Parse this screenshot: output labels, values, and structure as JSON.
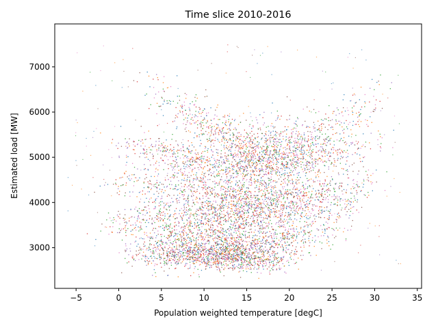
{
  "chart_data": {
    "type": "scatter",
    "title": "Time slice 2010-2016",
    "xlabel": "Population weighted temperature [degC]",
    "ylabel": "Estimated load [MW]",
    "xlim": [
      -7.5,
      35.5
    ],
    "ylim": [
      2100,
      7950
    ],
    "xticks": [
      -5,
      0,
      5,
      10,
      15,
      20,
      25,
      30,
      35
    ],
    "yticks": [
      3000,
      4000,
      5000,
      6000,
      7000
    ],
    "grid": false,
    "legend": "none",
    "colors": [
      "#1f77b4",
      "#ff7f0e",
      "#2ca02c",
      "#d62728",
      "#9467bd",
      "#8c564b",
      "#e377c2"
    ],
    "description_bands": [
      {
        "x_range": [
          2,
          32
        ],
        "y_at_points": [
          [
            2,
            6600
          ],
          [
            8,
            5950
          ],
          [
            15,
            5250
          ],
          [
            20,
            5250
          ],
          [
            25,
            5600
          ],
          [
            30,
            6300
          ],
          [
            32,
            6750
          ]
        ],
        "spread": 280
      },
      {
        "x_range": [
          -2,
          32
        ],
        "y_at_points": [
          [
            -2,
            5500
          ],
          [
            5,
            5100
          ],
          [
            12,
            4800
          ],
          [
            20,
            4850
          ],
          [
            27,
            5100
          ],
          [
            32,
            5400
          ]
        ],
        "spread": 200
      },
      {
        "x_range": [
          -3,
          32
        ],
        "y_at_points": [
          [
            -3,
            4400
          ],
          [
            5,
            4400
          ],
          [
            15,
            4100
          ],
          [
            22,
            4200
          ],
          [
            28,
            4350
          ],
          [
            32,
            4500
          ]
        ],
        "spread": 230
      },
      {
        "x_range": [
          -3,
          30
        ],
        "y_at_points": [
          [
            -3,
            3500
          ],
          [
            5,
            3700
          ],
          [
            12,
            3700
          ],
          [
            20,
            3800
          ],
          [
            28,
            4200
          ],
          [
            30,
            4300
          ]
        ],
        "spread": 220
      },
      {
        "x_range": [
          0,
          28
        ],
        "y_at_points": [
          [
            0,
            3350
          ],
          [
            5,
            3200
          ],
          [
            10,
            3150
          ],
          [
            15,
            3050
          ],
          [
            20,
            3200
          ],
          [
            25,
            3500
          ],
          [
            28,
            3700
          ]
        ],
        "spread": 230
      },
      {
        "x_range": [
          0,
          22
        ],
        "y_at_points": [
          [
            0,
            2800
          ],
          [
            8,
            2850
          ],
          [
            15,
            2750
          ],
          [
            20,
            2800
          ],
          [
            22,
            2950
          ]
        ],
        "spread": 160
      }
    ]
  }
}
